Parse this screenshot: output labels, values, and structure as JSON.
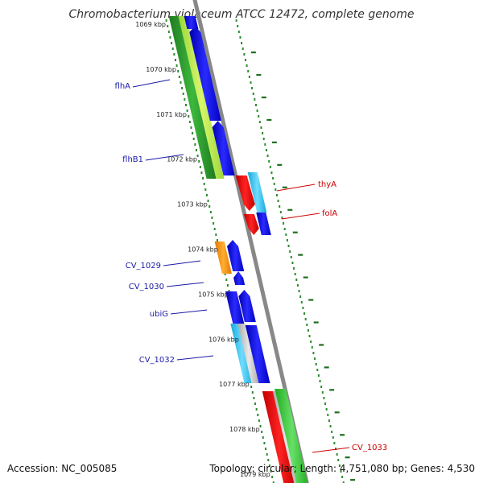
{
  "title": "Chromobacterium violaceum ATCC 12472, complete genome",
  "footer": {
    "accession": "Accession: NC_005085",
    "stats": "Topology: circular; Length: 4,751,080 bp; Genes: 4,530"
  },
  "colors": {
    "backbone": "#888888",
    "left_label": "#1a1aa8",
    "right_label": "#cc0000",
    "tick_dots": "#2e8b2e"
  },
  "ticks": [
    {
      "label": "1069 kbp",
      "kbp": 1069
    },
    {
      "label": "1070 kbp",
      "kbp": 1070
    },
    {
      "label": "1071 kbp",
      "kbp": 1071
    },
    {
      "label": "1072 kbp",
      "kbp": 1072
    },
    {
      "label": "1073 kbp",
      "kbp": 1073
    },
    {
      "label": "1074 kbp",
      "kbp": 1074
    },
    {
      "label": "1075 kbp",
      "kbp": 1075
    },
    {
      "label": "1076 kbp",
      "kbp": 1076
    },
    {
      "label": "1077 kbp",
      "kbp": 1077
    },
    {
      "label": "1078 kbp",
      "kbp": 1078
    },
    {
      "label": "1079 kbp",
      "kbp": 1079
    }
  ],
  "genes_left": [
    {
      "name": "flhA",
      "color": "#1a1aa8"
    },
    {
      "name": "flhB1",
      "color": "#1a1aa8"
    },
    {
      "name": "CV_1029",
      "color": "#1a1aa8"
    },
    {
      "name": "CV_1030",
      "color": "#1a1aa8"
    },
    {
      "name": "ubiG",
      "color": "#1a1aa8"
    },
    {
      "name": "CV_1032",
      "color": "#1a1aa8"
    }
  ],
  "genes_right": [
    {
      "name": "thyA",
      "color": "#cc0000"
    },
    {
      "name": "folA",
      "color": "#cc0000"
    },
    {
      "name": "CV_1033",
      "color": "#cc0000"
    }
  ]
}
